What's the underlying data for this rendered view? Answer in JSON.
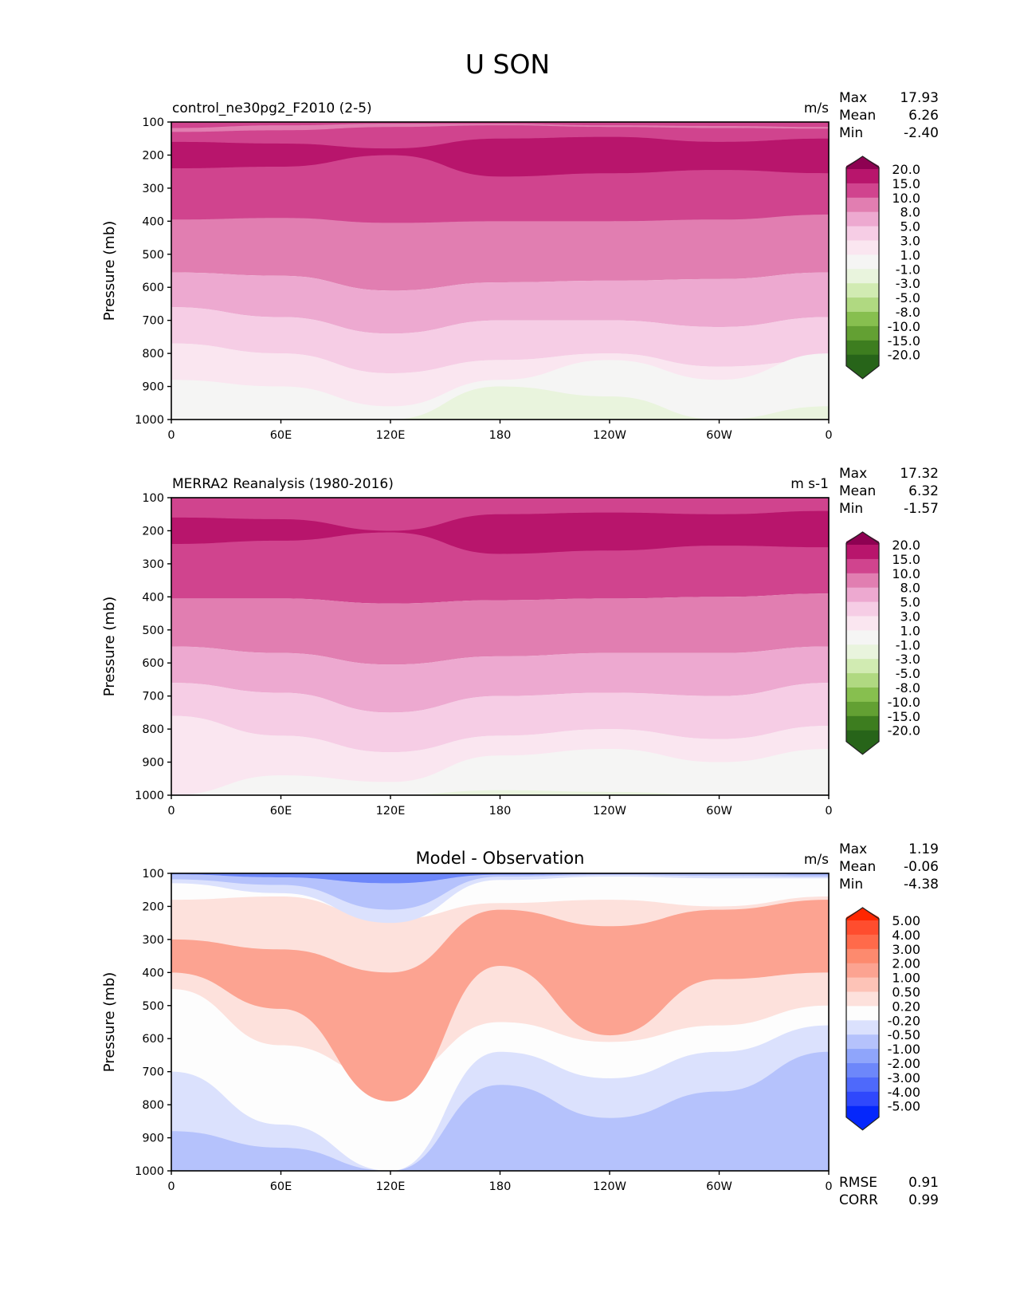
{
  "suptitle": "U SON",
  "chart_data": [
    {
      "type": "heatmap",
      "subtype": "filled-contour",
      "panel": "top",
      "title_left": "control_ne30pg2_F2010 (2-5)",
      "title_center": "",
      "units": "m/s",
      "ylabel": "Pressure (mb)",
      "xlabel": "",
      "x_ticks": [
        "0",
        "60E",
        "120E",
        "180",
        "120W",
        "60W",
        "0"
      ],
      "x_range": [
        0,
        360
      ],
      "y_ticks": [
        "100",
        "200",
        "300",
        "400",
        "500",
        "600",
        "700",
        "800",
        "900",
        "1000"
      ],
      "y_range": [
        100,
        1000
      ],
      "y_inverted": true,
      "stats": {
        "Max": "17.93",
        "Mean": "6.26",
        "Min": "-2.40"
      },
      "colorbar": {
        "levels": [
          "20.0",
          "15.0",
          "10.0",
          "8.0",
          "5.0",
          "3.0",
          "1.0",
          "-1.0",
          "-3.0",
          "-5.0",
          "-8.0",
          "-10.0",
          "-15.0",
          "-20.0"
        ],
        "colors": [
          "#8e0152",
          "#b8156c",
          "#d0448e",
          "#e17eb1",
          "#eda9d0",
          "#f6cde5",
          "#fae6f0",
          "#f5f5f4",
          "#e9f4dd",
          "#d1ebb2",
          "#b0d981",
          "#87bf4f",
          "#63a033",
          "#3d7d1f",
          "#276419"
        ],
        "extend": "both"
      },
      "bands": [
        {
          "color": "#d0448e",
          "top": [
            100,
            100,
            100,
            100,
            100,
            100,
            100
          ],
          "bottom": [
            400,
            395,
            410,
            405,
            405,
            400,
            385
          ]
        },
        {
          "color": "#e17eb1",
          "top": [
            118,
            110,
            105,
            105,
            110,
            112,
            115
          ],
          "bottom": [
            130,
            125,
            115,
            110,
            115,
            118,
            120
          ]
        },
        {
          "color": "#b8156c",
          "top": [
            160,
            165,
            180,
            150,
            145,
            160,
            150
          ],
          "bottom": [
            240,
            235,
            200,
            265,
            255,
            245,
            255
          ]
        },
        {
          "color": "#e17eb1",
          "top": [
            395,
            390,
            405,
            400,
            400,
            395,
            380
          ],
          "bottom": [
            555,
            565,
            610,
            585,
            580,
            575,
            555
          ]
        },
        {
          "color": "#eda9d0",
          "top": [
            555,
            565,
            610,
            585,
            580,
            575,
            555
          ],
          "bottom": [
            660,
            690,
            740,
            700,
            700,
            720,
            690
          ]
        },
        {
          "color": "#f6cde5",
          "top": [
            660,
            690,
            740,
            700,
            700,
            720,
            690
          ],
          "bottom": [
            770,
            800,
            860,
            820,
            800,
            840,
            820
          ]
        },
        {
          "color": "#fae6f0",
          "top": [
            770,
            800,
            860,
            820,
            800,
            840,
            820
          ],
          "bottom": [
            1000,
            1000,
            1000,
            1000,
            1000,
            1000,
            1000
          ]
        },
        {
          "color": "#f5f5f4",
          "top": [
            880,
            900,
            960,
            880,
            820,
            880,
            800
          ],
          "bottom": [
            1000,
            1000,
            1000,
            1000,
            1000,
            1000,
            1000
          ]
        },
        {
          "color": "#e9f4dd",
          "top": [
            1000,
            1000,
            1000,
            900,
            930,
            1000,
            960
          ],
          "bottom": [
            1000,
            1000,
            1000,
            1000,
            1000,
            1000,
            1000
          ]
        }
      ]
    },
    {
      "type": "heatmap",
      "subtype": "filled-contour",
      "panel": "middle",
      "title_left": "MERRA2 Reanalysis (1980-2016)",
      "title_center": "",
      "units": "m s-1",
      "ylabel": "Pressure (mb)",
      "xlabel": "",
      "x_ticks": [
        "0",
        "60E",
        "120E",
        "180",
        "120W",
        "60W",
        "0"
      ],
      "x_range": [
        0,
        360
      ],
      "y_ticks": [
        "100",
        "200",
        "300",
        "400",
        "500",
        "600",
        "700",
        "800",
        "900",
        "1000"
      ],
      "y_range": [
        100,
        1000
      ],
      "y_inverted": true,
      "stats": {
        "Max": "17.32",
        "Mean": "6.32",
        "Min": "-1.57"
      },
      "colorbar": {
        "levels": [
          "20.0",
          "15.0",
          "10.0",
          "8.0",
          "5.0",
          "3.0",
          "1.0",
          "-1.0",
          "-3.0",
          "-5.0",
          "-8.0",
          "-10.0",
          "-15.0",
          "-20.0"
        ],
        "colors": [
          "#8e0152",
          "#b8156c",
          "#d0448e",
          "#e17eb1",
          "#eda9d0",
          "#f6cde5",
          "#fae6f0",
          "#f5f5f4",
          "#e9f4dd",
          "#d1ebb2",
          "#b0d981",
          "#87bf4f",
          "#63a033",
          "#3d7d1f",
          "#276419"
        ],
        "extend": "both"
      },
      "bands": [
        {
          "color": "#d0448e",
          "top": [
            100,
            100,
            100,
            100,
            100,
            100,
            100
          ],
          "bottom": [
            405,
            405,
            420,
            410,
            405,
            400,
            390
          ]
        },
        {
          "color": "#b8156c",
          "top": [
            160,
            165,
            200,
            150,
            145,
            150,
            140
          ],
          "bottom": [
            240,
            230,
            205,
            270,
            260,
            245,
            250
          ]
        },
        {
          "color": "#e17eb1",
          "top": [
            405,
            405,
            420,
            410,
            405,
            400,
            390
          ],
          "bottom": [
            550,
            570,
            605,
            580,
            570,
            570,
            550
          ]
        },
        {
          "color": "#eda9d0",
          "top": [
            550,
            570,
            605,
            580,
            570,
            570,
            550
          ],
          "bottom": [
            660,
            690,
            750,
            700,
            690,
            700,
            660
          ]
        },
        {
          "color": "#f6cde5",
          "top": [
            660,
            690,
            750,
            700,
            690,
            700,
            660
          ],
          "bottom": [
            760,
            820,
            870,
            820,
            800,
            830,
            790
          ]
        },
        {
          "color": "#fae6f0",
          "top": [
            760,
            820,
            870,
            820,
            800,
            830,
            790
          ],
          "bottom": [
            1000,
            1000,
            1000,
            1000,
            1000,
            1000,
            1000
          ]
        },
        {
          "color": "#f5f5f4",
          "top": [
            1000,
            940,
            960,
            880,
            860,
            900,
            860
          ],
          "bottom": [
            1000,
            1000,
            1000,
            1000,
            1000,
            1000,
            1000
          ]
        },
        {
          "color": "#e9f4dd",
          "top": [
            1000,
            1000,
            1000,
            985,
            990,
            1000,
            1000
          ],
          "bottom": [
            1000,
            1000,
            1000,
            1000,
            1000,
            1000,
            1000
          ]
        }
      ]
    },
    {
      "type": "heatmap",
      "subtype": "filled-contour",
      "panel": "bottom",
      "title_left": "",
      "title_center": "Model - Observation",
      "units": "m/s",
      "ylabel": "Pressure (mb)",
      "xlabel": "",
      "x_ticks": [
        "0",
        "60E",
        "120E",
        "180",
        "120W",
        "60W",
        "0"
      ],
      "x_range": [
        0,
        360
      ],
      "y_ticks": [
        "100",
        "200",
        "300",
        "400",
        "500",
        "600",
        "700",
        "800",
        "900",
        "1000"
      ],
      "y_range": [
        100,
        1000
      ],
      "y_inverted": true,
      "stats": {
        "Max": "1.19",
        "Mean": "-0.06",
        "Min": "-4.38"
      },
      "extra_stats": {
        "RMSE": "0.91",
        "CORR": "0.99"
      },
      "colorbar": {
        "levels": [
          "5.00",
          "4.00",
          "3.00",
          "2.00",
          "1.00",
          "0.50",
          "0.20",
          "-0.20",
          "-0.50",
          "-1.00",
          "-2.00",
          "-3.00",
          "-4.00",
          "-5.00"
        ],
        "colors": [
          "#ff2600",
          "#ff4d2e",
          "#ff6a4a",
          "#fd8a6e",
          "#fca391",
          "#fdc3b7",
          "#fde1dc",
          "#fdfdfd",
          "#dbe1fd",
          "#b5c2fc",
          "#8fa5fb",
          "#6d87fa",
          "#4e69fb",
          "#2f48fc",
          "#0527fb"
        ],
        "extend": "both"
      },
      "bands": [
        {
          "color": "#fde1dc",
          "top": [
            180,
            170,
            240,
            190,
            180,
            200,
            170
          ],
          "bottom": [
            450,
            620,
            720,
            550,
            610,
            560,
            500
          ]
        },
        {
          "color": "#fca391",
          "top": [
            300,
            330,
            400,
            210,
            260,
            210,
            180
          ],
          "bottom": [
            400,
            510,
            790,
            380,
            590,
            420,
            400
          ]
        },
        {
          "color": "#dbe1fd",
          "top": [
            105,
            105,
            105,
            105,
            105,
            105,
            105
          ],
          "bottom": [
            130,
            160,
            250,
            120,
            110,
            115,
            115
          ]
        },
        {
          "color": "#b5c2fc",
          "top": [
            100,
            100,
            100,
            100,
            100,
            100,
            100
          ],
          "bottom": [
            118,
            135,
            210,
            110,
            105,
            108,
            110
          ]
        },
        {
          "color": "#6d87fa",
          "top": [
            100,
            100,
            100,
            100,
            100,
            100,
            100
          ],
          "bottom": [
            103,
            112,
            130,
            104,
            102,
            102,
            103
          ]
        },
        {
          "color": "#dbe1fd",
          "top": [
            700,
            860,
            1000,
            640,
            720,
            640,
            560
          ],
          "bottom": [
            1000,
            1000,
            1000,
            1000,
            1000,
            1000,
            1000
          ]
        },
        {
          "color": "#b5c2fc",
          "top": [
            880,
            930,
            1000,
            740,
            840,
            760,
            640
          ],
          "bottom": [
            1000,
            1000,
            1000,
            1000,
            1000,
            1000,
            1000
          ]
        }
      ]
    }
  ]
}
